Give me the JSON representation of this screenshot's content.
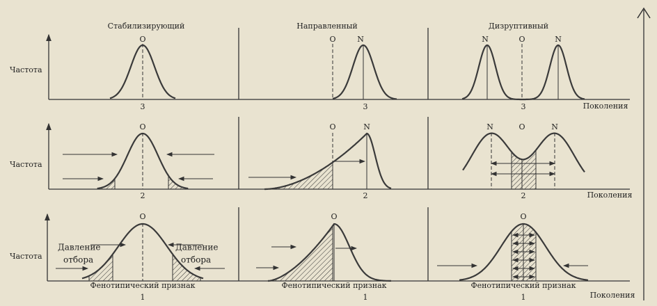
{
  "columns": [
    "Стабилизирующий",
    "Направленный",
    "Дизруптивный"
  ],
  "rows": [
    {
      "y_label": "Частота",
      "x_label": "Поколения",
      "generations": [
        "3",
        "3",
        "3"
      ],
      "peaks": [
        [
          "O"
        ],
        [
          "O",
          "N"
        ],
        [
          "N",
          "O",
          "N"
        ]
      ]
    },
    {
      "y_label": "Частота",
      "x_label": "Поколения",
      "generations": [
        "2",
        "2",
        "2"
      ],
      "peaks": [
        [
          "O"
        ],
        [
          "O",
          "N"
        ],
        [
          "N",
          "O",
          "N"
        ]
      ]
    },
    {
      "y_label": "Частота",
      "x_label": "Поколения",
      "generations": [
        "1",
        "1",
        "1"
      ],
      "peaks": [
        [
          "O"
        ],
        [
          "O"
        ],
        [
          "O"
        ]
      ],
      "features": [
        "Фенотипический признак",
        "Фенотипический признак",
        "Фенотипический признак"
      ],
      "pressure": [
        [
          "Давление",
          "отбора"
        ],
        [
          "Давление",
          "отбора"
        ]
      ]
    }
  ]
}
